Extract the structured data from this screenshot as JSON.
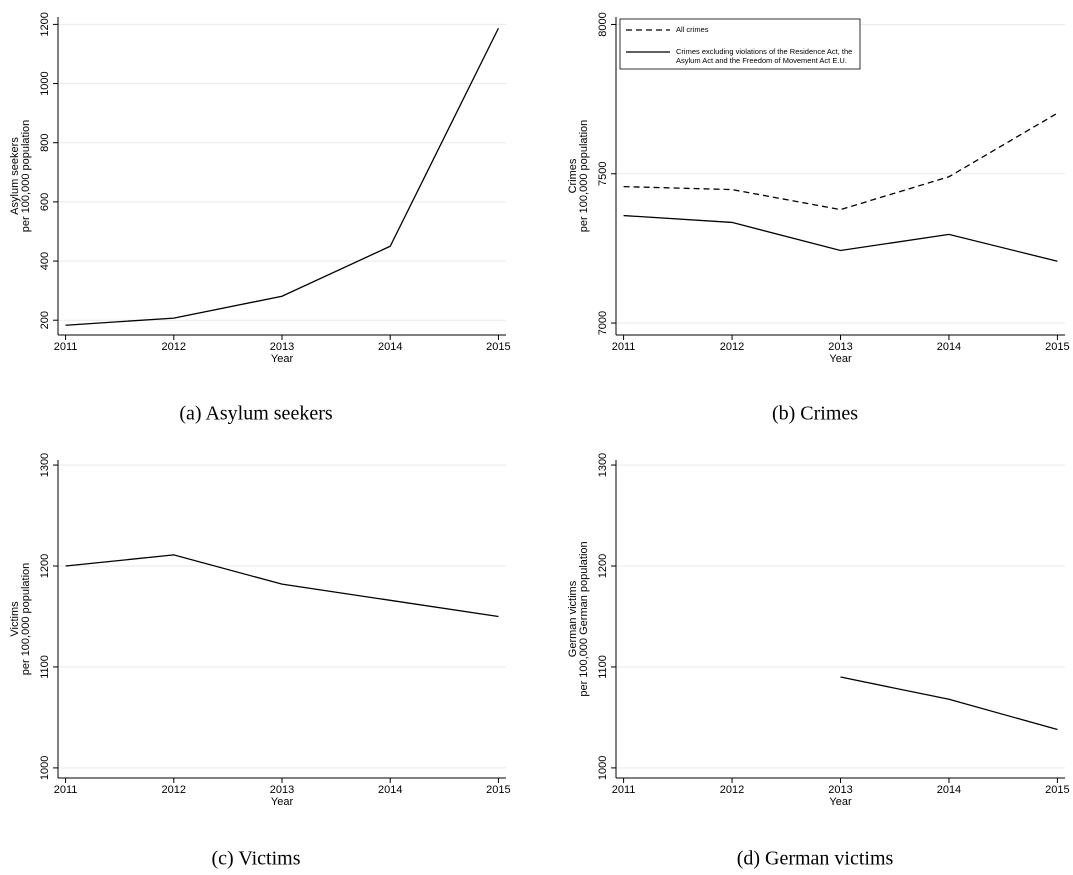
{
  "chart_data": [
    {
      "type": "line",
      "caption": "(a) Asylum seekers",
      "xlabel": "Year",
      "ylabel": [
        "Asylum seekers",
        "per 100,000 population"
      ],
      "x": [
        2011,
        2012,
        2013,
        2014,
        2015
      ],
      "xlim": [
        2010.93,
        2015.07
      ],
      "xticks": [
        2011,
        2012,
        2013,
        2014,
        2015
      ],
      "ylim": [
        150,
        1225
      ],
      "yticks": [
        200,
        400,
        600,
        800,
        1000,
        1200
      ],
      "grid": true,
      "series": [
        {
          "color": "#000000",
          "dash": "solid",
          "values": [
            183,
            207,
            281,
            450,
            1187
          ]
        }
      ]
    },
    {
      "type": "line",
      "caption": "(b) Crimes",
      "xlabel": "Year",
      "ylabel": [
        "Crimes",
        "per 100,000 population"
      ],
      "x": [
        2011,
        2012,
        2013,
        2014,
        2015
      ],
      "xlim": [
        2010.93,
        2015.07
      ],
      "xticks": [
        2011,
        2012,
        2013,
        2014,
        2015
      ],
      "ylim": [
        6960,
        8025
      ],
      "yticks": [
        7000,
        7500,
        8000
      ],
      "grid": true,
      "legend": "top-left",
      "series": [
        {
          "name": "All crimes",
          "color": "#000000",
          "dash": "dashed",
          "values": [
            7457,
            7447,
            7380,
            7490,
            7703
          ]
        },
        {
          "name": "Crimes excluding violations of the Residence Act, the Asylum Act and the Freedom of Movement Act E.U.",
          "color": "#000000",
          "dash": "solid",
          "values": [
            7360,
            7337,
            7243,
            7297,
            7207
          ]
        }
      ]
    },
    {
      "type": "line",
      "caption": "(c) Victims",
      "xlabel": "Year",
      "ylabel": [
        "Victims",
        "per 100,000 population"
      ],
      "x": [
        2011,
        2012,
        2013,
        2014,
        2015
      ],
      "xlim": [
        2010.93,
        2015.07
      ],
      "xticks": [
        2011,
        2012,
        2013,
        2014,
        2015
      ],
      "ylim": [
        990,
        1305
      ],
      "yticks": [
        1000,
        1100,
        1200,
        1300
      ],
      "grid": true,
      "series": [
        {
          "color": "#000000",
          "dash": "solid",
          "values": [
            1200,
            1211,
            1182,
            1166,
            1150
          ]
        }
      ]
    },
    {
      "type": "line",
      "caption": "(d) German victims",
      "xlabel": "Year",
      "ylabel": [
        "German victims",
        "per 100,000 German population"
      ],
      "x": [
        2011,
        2012,
        2013,
        2014,
        2015
      ],
      "xlim": [
        2010.93,
        2015.07
      ],
      "xticks": [
        2011,
        2012,
        2013,
        2014,
        2015
      ],
      "ylim": [
        990,
        1305
      ],
      "yticks": [
        1000,
        1100,
        1200,
        1300
      ],
      "grid": true,
      "series": [
        {
          "color": "#000000",
          "dash": "solid",
          "values": [
            null,
            null,
            1090,
            1068,
            1038
          ]
        }
      ]
    }
  ]
}
